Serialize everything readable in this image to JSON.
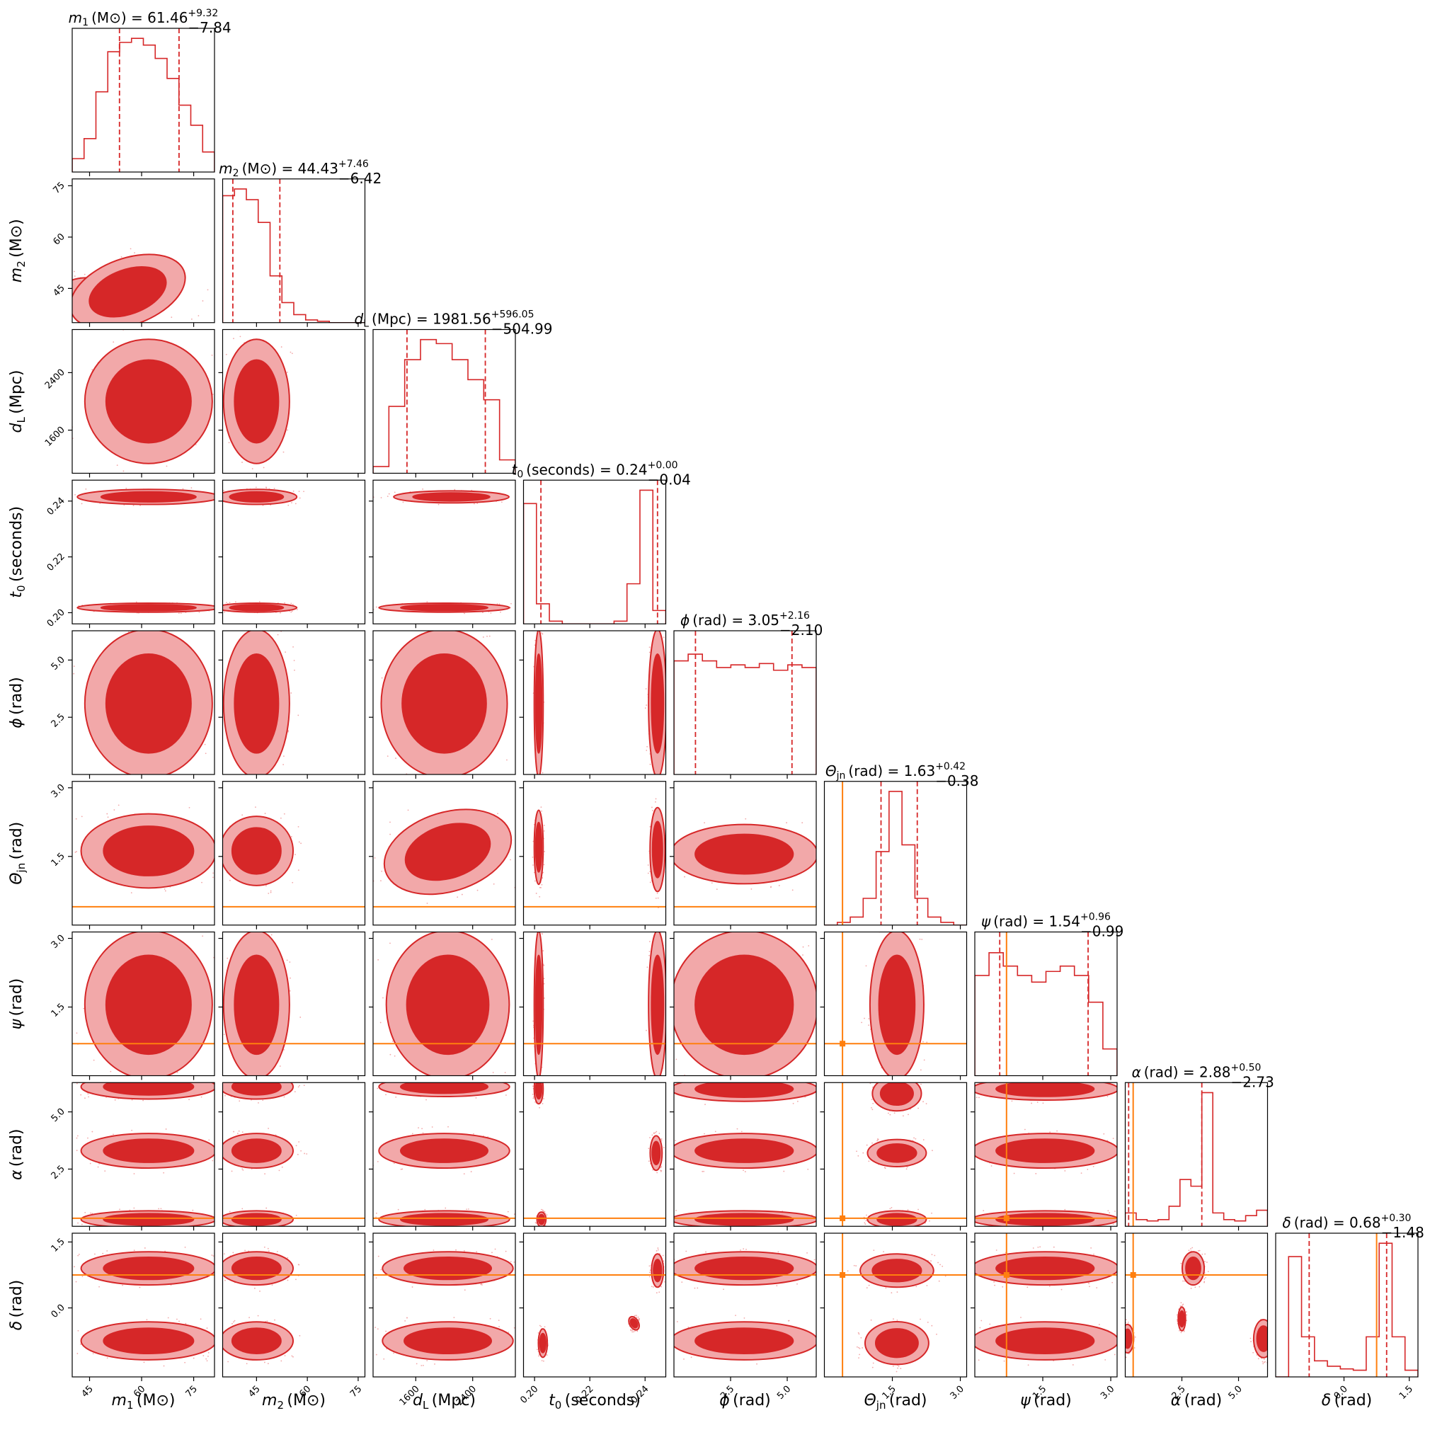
{
  "chart_data": {
    "type": "corner",
    "title": "",
    "colors": {
      "posterior": "#d62728",
      "posterior_light": "#f2a8a9",
      "truth": "#ff7f0e",
      "frame": "#000000"
    },
    "truth_values": {
      "theta_jn": 0.4,
      "psi": 0.7,
      "alpha": 0.35,
      "delta": 0.75
    },
    "parameters": [
      {
        "key": "m1",
        "sym": "m",
        "sub": "1",
        "unit": "(M⊙)",
        "title_prefix": "= ",
        "median": "61.46",
        "err_plus": "+9.32",
        "err_minus": "−7.84",
        "range": [
          40,
          81
        ],
        "ticks": [
          45,
          60,
          75
        ],
        "tick_labels": [
          "45",
          "60",
          "75"
        ],
        "quantiles": [
          53.62,
          70.78
        ]
      },
      {
        "key": "m2",
        "sym": "m",
        "sub": "2",
        "unit": "(M⊙)",
        "title_prefix": "= ",
        "median": "44.43",
        "err_plus": "+7.46",
        "err_minus": "−6.42",
        "range": [
          35,
          77
        ],
        "ticks": [
          45,
          60,
          75
        ],
        "tick_labels": [
          "45",
          "60",
          "75"
        ],
        "quantiles": [
          38.01,
          51.89
        ]
      },
      {
        "key": "dL",
        "sym": "d",
        "sub": "L",
        "unit": "(Mpc)",
        "title_prefix": "= ",
        "median": "1981.56",
        "err_plus": "+596.05",
        "err_minus": "−504.99",
        "range": [
          1000,
          3000
        ],
        "ticks": [
          1600,
          2400
        ],
        "tick_labels": [
          "1600",
          "2400"
        ],
        "quantiles": [
          1476.57,
          2577.61
        ]
      },
      {
        "key": "t0",
        "sym": "t",
        "sub": "0",
        "unit": "(seconds)",
        "title_prefix": "= ",
        "median": "0.24",
        "err_plus": "+0.00",
        "err_minus": "−0.04",
        "range": [
          0.196,
          0.2475
        ],
        "ticks": [
          0.2,
          0.22,
          0.24
        ],
        "tick_labels": [
          "0.20",
          "0.22",
          "0.24"
        ],
        "quantiles": [
          0.2023,
          0.2445
        ]
      },
      {
        "key": "phi",
        "sym": "ϕ",
        "sub": "",
        "unit": "(rad)",
        "title_prefix": "= ",
        "median": "3.05",
        "err_plus": "+2.16",
        "err_minus": "−2.10",
        "range": [
          0,
          6.28
        ],
        "ticks": [
          2.5,
          5.0
        ],
        "tick_labels": [
          "2.5",
          "5.0"
        ],
        "quantiles": [
          0.95,
          5.21
        ]
      },
      {
        "key": "theta_jn",
        "sym": "Θ",
        "sub": "jn",
        "unit": "(rad)",
        "title_prefix": "= ",
        "median": "1.63",
        "err_plus": "+0.42",
        "err_minus": "−0.38",
        "range": [
          0,
          3.14
        ],
        "ticks": [
          1.5,
          3.0
        ],
        "tick_labels": [
          "1.5",
          "3.0"
        ],
        "quantiles": [
          1.25,
          2.05
        ]
      },
      {
        "key": "psi",
        "sym": "ψ",
        "sub": "",
        "unit": "(rad)",
        "title_prefix": "= ",
        "median": "1.54",
        "err_plus": "+0.96",
        "err_minus": "−0.99",
        "range": [
          0,
          3.14
        ],
        "ticks": [
          1.5,
          3.0
        ],
        "tick_labels": [
          "1.5",
          "3.0"
        ],
        "quantiles": [
          0.55,
          2.5
        ]
      },
      {
        "key": "alpha",
        "sym": "α",
        "sub": "",
        "unit": "(rad)",
        "title_prefix": "= ",
        "median": "2.88",
        "err_plus": "+0.50",
        "err_minus": "−2.73",
        "range": [
          0,
          6.28
        ],
        "ticks": [
          2.5,
          5.0
        ],
        "tick_labels": [
          "2.5",
          "5.0"
        ],
        "quantiles": [
          0.15,
          3.38
        ]
      },
      {
        "key": "delta",
        "sym": "δ",
        "sub": "",
        "unit": "(rad)",
        "title_prefix": "= ",
        "median": "0.68",
        "err_plus": "+0.30",
        "err_minus": "−1.48",
        "range": [
          -1.57,
          1.7
        ],
        "ticks": [
          -0.0,
          1.5
        ],
        "tick_labels": [
          "0.0",
          "1.5"
        ],
        "quantiles": [
          -0.8,
          0.98
        ]
      }
    ],
    "histograms": {
      "m1": [
        0.1,
        0.25,
        0.6,
        0.9,
        0.97,
        1.0,
        0.95,
        0.85,
        0.7,
        0.5,
        0.35,
        0.15
      ],
      "m2": [
        0.95,
        1.0,
        0.92,
        0.75,
        0.35,
        0.15,
        0.06,
        0.02,
        0.01,
        0.0,
        0.0,
        0.0
      ],
      "dL": [
        0.05,
        0.5,
        0.85,
        1.0,
        0.97,
        0.85,
        0.7,
        0.55,
        0.1
      ],
      "t0": [
        0.9,
        0.15,
        0.02,
        0.0,
        0.0,
        0.0,
        0.0,
        0.02,
        0.3,
        1.0,
        0.1
      ],
      "phi": [
        0.85,
        0.9,
        0.85,
        0.8,
        0.82,
        0.8,
        0.83,
        0.78,
        0.82,
        0.8
      ],
      "theta_jn": [
        0.0,
        0.02,
        0.06,
        0.2,
        0.55,
        1.0,
        0.6,
        0.2,
        0.06,
        0.02,
        0.0
      ],
      "psi": [
        0.75,
        0.92,
        0.82,
        0.75,
        0.7,
        0.78,
        0.82,
        0.75,
        0.55,
        0.2
      ],
      "alpha": [
        0.1,
        0.05,
        0.04,
        0.05,
        0.15,
        0.35,
        0.3,
        1.0,
        0.1,
        0.05,
        0.04,
        0.08,
        0.12
      ],
      "delta": [
        0.0,
        0.9,
        0.3,
        0.12,
        0.08,
        0.06,
        0.05,
        0.3,
        1.0,
        0.3,
        0.05
      ]
    },
    "contours": [
      {
        "row": "m2",
        "col": "m1",
        "blobs": [
          [
            48,
            42,
            10,
            5,
            -0.3
          ],
          [
            56,
            44,
            16,
            9,
            0.35
          ]
        ]
      },
      {
        "row": "dL",
        "col": "m1",
        "blobs": [
          [
            62,
            2000,
            17,
            800,
            0
          ]
        ]
      },
      {
        "row": "dL",
        "col": "m2",
        "blobs": [
          [
            45,
            2000,
            9,
            800,
            0
          ]
        ]
      },
      {
        "row": "t0",
        "col": "m1",
        "blobs": [
          [
            62,
            0.2415,
            19,
            0.0025,
            0
          ],
          [
            62,
            0.2018,
            19,
            0.0015,
            0
          ]
        ]
      },
      {
        "row": "t0",
        "col": "m2",
        "blobs": [
          [
            45,
            0.2415,
            11,
            0.0025,
            0
          ],
          [
            45,
            0.2018,
            11,
            0.0015,
            0
          ]
        ]
      },
      {
        "row": "t0",
        "col": "dL",
        "blobs": [
          [
            2100,
            0.2415,
            750,
            0.002,
            0
          ],
          [
            2000,
            0.2018,
            850,
            0.0015,
            0
          ]
        ]
      },
      {
        "row": "phi",
        "col": "m1",
        "blobs": [
          [
            62,
            3.1,
            17,
            3.0,
            0
          ]
        ]
      },
      {
        "row": "phi",
        "col": "m2",
        "blobs": [
          [
            45,
            3.1,
            9,
            3.0,
            0
          ]
        ]
      },
      {
        "row": "phi",
        "col": "dL",
        "blobs": [
          [
            2000,
            3.1,
            820,
            3.0,
            0
          ]
        ]
      },
      {
        "row": "phi",
        "col": "t0",
        "blobs": [
          [
            0.2015,
            3.1,
            0.0015,
            3.0,
            0
          ],
          [
            0.2445,
            3.1,
            0.003,
            3.0,
            0
          ]
        ]
      },
      {
        "row": "theta_jn",
        "col": "m1",
        "blobs": [
          [
            62,
            1.62,
            18,
            0.75,
            0
          ]
        ]
      },
      {
        "row": "theta_jn",
        "col": "m2",
        "blobs": [
          [
            45,
            1.62,
            10,
            0.7,
            0
          ]
        ]
      },
      {
        "row": "theta_jn",
        "col": "dL",
        "blobs": [
          [
            2050,
            1.6,
            850,
            0.8,
            0.3
          ]
        ]
      },
      {
        "row": "theta_jn",
        "col": "t0",
        "blobs": [
          [
            0.2015,
            1.7,
            0.0015,
            0.75,
            0
          ],
          [
            0.2445,
            1.65,
            0.0025,
            0.85,
            0
          ]
        ]
      },
      {
        "row": "theta_jn",
        "col": "phi",
        "blobs": [
          [
            3.1,
            1.55,
            3.0,
            0.6,
            0
          ]
        ]
      },
      {
        "row": "psi",
        "col": "m1",
        "blobs": [
          [
            62,
            1.55,
            17,
            1.5,
            0
          ]
        ]
      },
      {
        "row": "psi",
        "col": "m2",
        "blobs": [
          [
            45,
            1.55,
            9,
            1.5,
            0
          ]
        ]
      },
      {
        "row": "psi",
        "col": "dL",
        "blobs": [
          [
            2050,
            1.55,
            800,
            1.5,
            0
          ]
        ]
      },
      {
        "row": "psi",
        "col": "t0",
        "blobs": [
          [
            0.2015,
            1.55,
            0.0015,
            1.5,
            0
          ],
          [
            0.2445,
            1.55,
            0.003,
            1.5,
            0
          ]
        ]
      },
      {
        "row": "psi",
        "col": "phi",
        "blobs": [
          [
            3.1,
            1.55,
            3.0,
            1.5,
            0
          ]
        ]
      },
      {
        "row": "psi",
        "col": "theta_jn",
        "blobs": [
          [
            1.6,
            1.55,
            0.55,
            1.5,
            0
          ]
        ]
      },
      {
        "row": "alpha",
        "col": "m1",
        "blobs": [
          [
            62,
            3.3,
            18,
            0.7,
            0
          ],
          [
            62,
            6.1,
            18,
            0.5,
            0
          ],
          [
            62,
            0.3,
            18,
            0.35,
            0
          ]
        ]
      },
      {
        "row": "alpha",
        "col": "m2",
        "blobs": [
          [
            45,
            3.3,
            10,
            0.7,
            0
          ],
          [
            45,
            6.1,
            10,
            0.5,
            0
          ],
          [
            45,
            0.3,
            10,
            0.35,
            0
          ]
        ]
      },
      {
        "row": "alpha",
        "col": "dL",
        "blobs": [
          [
            2000,
            3.3,
            850,
            0.7,
            0
          ],
          [
            2000,
            6.1,
            850,
            0.4,
            0
          ],
          [
            2000,
            0.3,
            850,
            0.35,
            0
          ]
        ]
      },
      {
        "row": "alpha",
        "col": "t0",
        "blobs": [
          [
            0.2015,
            6.0,
            0.0015,
            0.6,
            0
          ],
          [
            0.244,
            3.2,
            0.002,
            0.7,
            0
          ],
          [
            0.2025,
            0.3,
            0.0015,
            0.3,
            0
          ]
        ]
      },
      {
        "row": "alpha",
        "col": "phi",
        "blobs": [
          [
            3.1,
            3.3,
            3.0,
            0.7,
            0
          ],
          [
            3.1,
            6.0,
            3.0,
            0.5,
            0
          ],
          [
            3.1,
            0.3,
            3.0,
            0.35,
            0
          ]
        ]
      },
      {
        "row": "alpha",
        "col": "theta_jn",
        "blobs": [
          [
            1.6,
            3.2,
            0.6,
            0.55,
            0
          ],
          [
            1.6,
            5.8,
            0.5,
            0.7,
            0
          ],
          [
            1.6,
            0.3,
            0.6,
            0.35,
            0
          ]
        ]
      },
      {
        "row": "alpha",
        "col": "psi",
        "blobs": [
          [
            1.55,
            3.3,
            1.5,
            0.7,
            0
          ],
          [
            1.55,
            6.0,
            1.5,
            0.45,
            0
          ],
          [
            1.55,
            0.3,
            1.5,
            0.35,
            0
          ]
        ]
      },
      {
        "row": "delta",
        "col": "m1",
        "blobs": [
          [
            62,
            0.9,
            18,
            0.35,
            0
          ],
          [
            62,
            -0.75,
            18,
            0.4,
            0
          ]
        ]
      },
      {
        "row": "delta",
        "col": "m2",
        "blobs": [
          [
            45,
            0.9,
            10,
            0.35,
            0
          ],
          [
            45,
            -0.75,
            10,
            0.4,
            0
          ]
        ]
      },
      {
        "row": "delta",
        "col": "dL",
        "blobs": [
          [
            2050,
            0.9,
            850,
            0.35,
            0
          ],
          [
            2050,
            -0.75,
            850,
            0.4,
            0
          ]
        ]
      },
      {
        "row": "delta",
        "col": "t0",
        "blobs": [
          [
            0.2445,
            0.85,
            0.002,
            0.35,
            0
          ],
          [
            0.203,
            -0.8,
            0.0015,
            0.3,
            0
          ],
          [
            0.236,
            -0.35,
            0.0015,
            0.15,
            0.5
          ]
        ]
      },
      {
        "row": "delta",
        "col": "phi",
        "blobs": [
          [
            3.1,
            0.9,
            3.0,
            0.35,
            0
          ],
          [
            3.1,
            -0.75,
            3.0,
            0.4,
            0
          ]
        ]
      },
      {
        "row": "delta",
        "col": "theta_jn",
        "blobs": [
          [
            1.6,
            0.85,
            0.75,
            0.35,
            0
          ],
          [
            1.6,
            -0.8,
            0.65,
            0.45,
            0
          ]
        ]
      },
      {
        "row": "delta",
        "col": "psi",
        "blobs": [
          [
            1.55,
            0.9,
            1.5,
            0.35,
            0
          ],
          [
            1.55,
            -0.75,
            1.5,
            0.4,
            0
          ]
        ]
      },
      {
        "row": "delta",
        "col": "alpha",
        "blobs": [
          [
            3.0,
            0.9,
            0.45,
            0.35,
            0
          ],
          [
            2.5,
            -0.25,
            0.15,
            0.25,
            0
          ],
          [
            0.1,
            -0.7,
            0.25,
            0.3,
            0
          ],
          [
            6.1,
            -0.7,
            0.4,
            0.4,
            0
          ]
        ]
      }
    ]
  }
}
